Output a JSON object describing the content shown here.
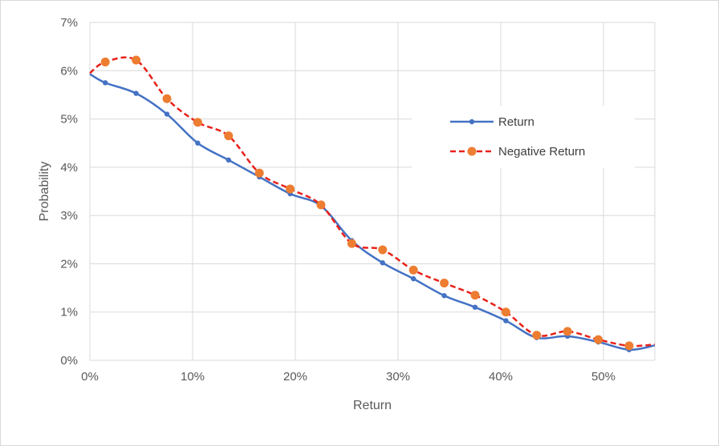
{
  "chart_data": {
    "type": "line",
    "xlabel": "Return",
    "ylabel": "Probability",
    "xlim": [
      0,
      0.55
    ],
    "ylim": [
      0,
      0.07
    ],
    "x_ticks": [
      0,
      0.1,
      0.2,
      0.3,
      0.4,
      0.5
    ],
    "x_tick_labels": [
      "0%",
      "10%",
      "20%",
      "30%",
      "40%",
      "50%"
    ],
    "y_ticks": [
      0,
      0.01,
      0.02,
      0.03,
      0.04,
      0.05,
      0.06,
      0.07
    ],
    "y_tick_labels": [
      "0%",
      "1%",
      "2%",
      "3%",
      "4%",
      "5%",
      "6%",
      "7%"
    ],
    "grid": true,
    "legend_position": "right",
    "series": [
      {
        "name": "Return",
        "color": "#4472c4",
        "style": "solid-smooth",
        "marker": "small-circle",
        "x": [
          0.0,
          0.015,
          0.045,
          0.075,
          0.105,
          0.135,
          0.165,
          0.195,
          0.225,
          0.255,
          0.285,
          0.315,
          0.345,
          0.375,
          0.405,
          0.435,
          0.465,
          0.495,
          0.525,
          0.55
        ],
        "y": [
          0.0593,
          0.0575,
          0.0553,
          0.051,
          0.045,
          0.0415,
          0.038,
          0.0345,
          0.032,
          0.0248,
          0.0202,
          0.0169,
          0.0134,
          0.011,
          0.0082,
          0.0047,
          0.005,
          0.0038,
          0.0022,
          0.0031
        ]
      },
      {
        "name": "Negative Return",
        "color": "#e8211a",
        "marker_color": "#ed7d31",
        "style": "dashed-smooth",
        "marker": "large-circle",
        "x": [
          0.0,
          0.015,
          0.045,
          0.075,
          0.105,
          0.135,
          0.165,
          0.195,
          0.225,
          0.255,
          0.285,
          0.315,
          0.345,
          0.375,
          0.405,
          0.435,
          0.465,
          0.495,
          0.525,
          0.55
        ],
        "y": [
          0.0595,
          0.0618,
          0.0622,
          0.0542,
          0.0493,
          0.0465,
          0.0388,
          0.0355,
          0.0322,
          0.0242,
          0.0229,
          0.0187,
          0.016,
          0.0135,
          0.01,
          0.0052,
          0.006,
          0.0043,
          0.003,
          0.0033
        ]
      }
    ]
  }
}
